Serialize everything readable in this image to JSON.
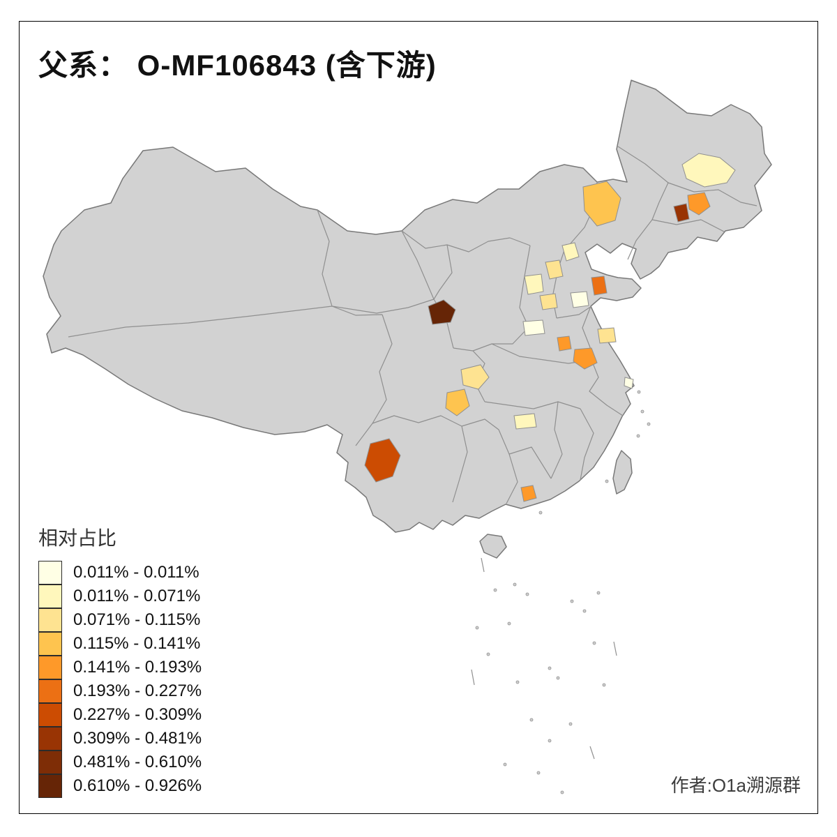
{
  "title": "父系： O-MF106843 (含下游)",
  "attribution": "作者:O1a溯源群",
  "legend": {
    "title": "相对占比",
    "classes": [
      {
        "label": "0.011% - 0.011%",
        "color": "#FFFFE5"
      },
      {
        "label": "0.011% - 0.071%",
        "color": "#FFF7BC"
      },
      {
        "label": "0.071% - 0.115%",
        "color": "#FEE391"
      },
      {
        "label": "0.115% - 0.141%",
        "color": "#FEC44F"
      },
      {
        "label": "0.141% - 0.193%",
        "color": "#FE9929"
      },
      {
        "label": "0.193% - 0.227%",
        "color": "#EC7014"
      },
      {
        "label": "0.227% - 0.309%",
        "color": "#CC4C02"
      },
      {
        "label": "0.309% - 0.481%",
        "color": "#993404"
      },
      {
        "label": "0.481% - 0.610%",
        "color": "#7E2D06"
      },
      {
        "label": "0.610% - 0.926%",
        "color": "#662506"
      }
    ]
  },
  "map": {
    "base_fill": "#D2D2D2",
    "boundary_color": "#8F8F8F",
    "outline_color": "#787878",
    "background": "#FFFFFF",
    "highlighted_regions": [
      {
        "id": "r1",
        "class": 2
      },
      {
        "id": "r2",
        "class": 4
      },
      {
        "id": "r3",
        "class": 8
      },
      {
        "id": "r4",
        "class": 5
      },
      {
        "id": "r5",
        "class": 2
      },
      {
        "id": "r6",
        "class": 3
      },
      {
        "id": "r7",
        "class": 2
      },
      {
        "id": "r8",
        "class": 3
      },
      {
        "id": "r9",
        "class": 1
      },
      {
        "id": "r10",
        "class": 6
      },
      {
        "id": "r11",
        "class": 3
      },
      {
        "id": "r12",
        "class": 1
      },
      {
        "id": "r13",
        "class": 5
      },
      {
        "id": "r14",
        "class": 5
      },
      {
        "id": "r15",
        "class": 10
      },
      {
        "id": "r16",
        "class": 3
      },
      {
        "id": "r17",
        "class": 4
      },
      {
        "id": "r18",
        "class": 7
      },
      {
        "id": "r19",
        "class": 2
      },
      {
        "id": "r20",
        "class": 5
      },
      {
        "id": "r21",
        "class": 1
      }
    ]
  }
}
